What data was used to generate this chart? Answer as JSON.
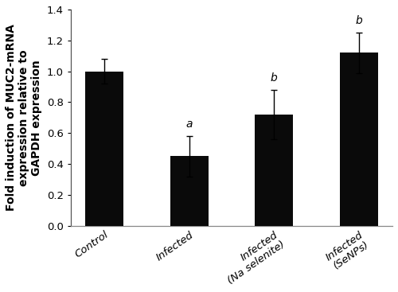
{
  "categories": [
    "Control",
    "Infected",
    "Infected\n(Na selenite)",
    "Infected\n(SeNPs)"
  ],
  "values": [
    1.0,
    0.45,
    0.72,
    1.12
  ],
  "errors": [
    0.08,
    0.13,
    0.16,
    0.13
  ],
  "bar_color": "#0a0a0a",
  "bar_width": 0.45,
  "annotations": [
    "",
    "a",
    "b",
    "b"
  ],
  "ylabel": "Fold induction of MUC2-mRNA\nexpression relative to\nGAPDH expression",
  "ylim": [
    0.0,
    1.4
  ],
  "yticks": [
    0.0,
    0.2,
    0.4,
    0.6,
    0.8,
    1.0,
    1.2,
    1.4
  ],
  "background_color": "#ffffff",
  "ylabel_fontsize": 10,
  "tick_fontsize": 9.5,
  "annotation_fontsize": 10,
  "capsize": 3,
  "elinewidth": 1.0,
  "ecapthick": 1.0,
  "xtick_rotation": 35,
  "fig_width": 5.0,
  "fig_height": 3.67
}
